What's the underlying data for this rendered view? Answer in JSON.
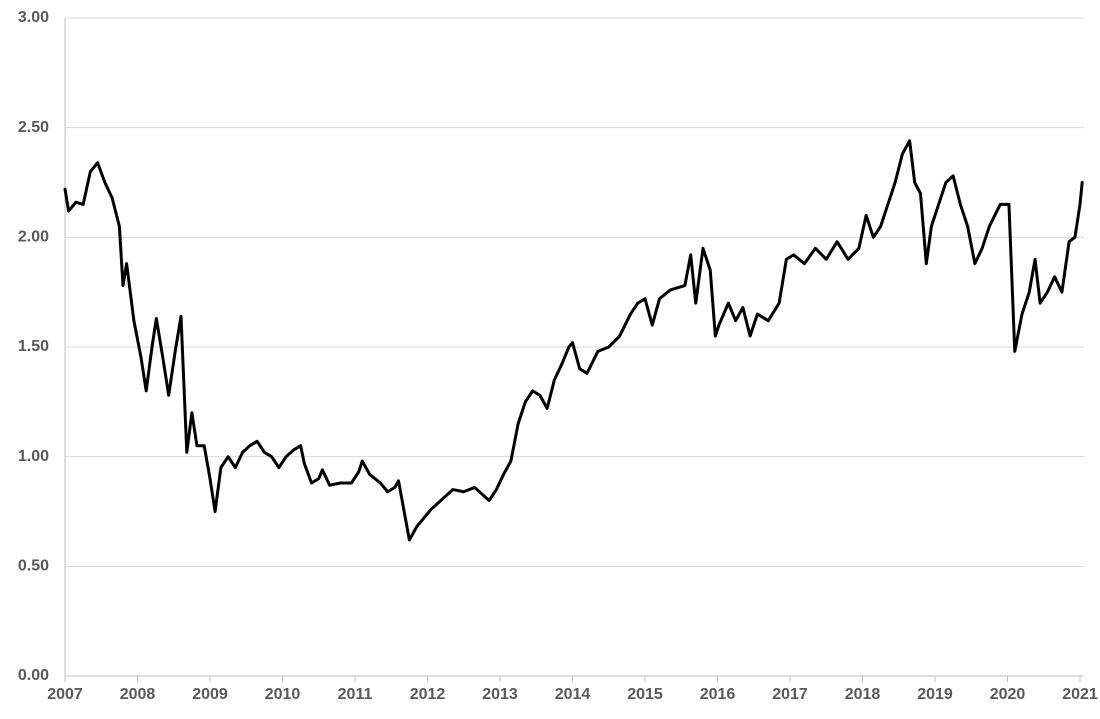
{
  "chart_data": {
    "type": "line",
    "color": "#000000",
    "grid": true,
    "xlim": [
      2007,
      2021
    ],
    "xticks": [
      2007,
      2008,
      2009,
      2010,
      2011,
      2012,
      2013,
      2014,
      2015,
      2016,
      2017,
      2018,
      2019,
      2020,
      2021
    ],
    "ylim": [
      0,
      3
    ],
    "yticks": [
      {
        "value": 0,
        "label": "0.00"
      },
      {
        "value": 0.5,
        "label": "0.50"
      },
      {
        "value": 1,
        "label": "1.00"
      },
      {
        "value": 1.5,
        "label": "1.50"
      },
      {
        "value": 2,
        "label": "2.00"
      },
      {
        "value": 2.5,
        "label": "2.50"
      },
      {
        "value": 3,
        "label": "3.00"
      }
    ],
    "x": [
      2007.0,
      2007.05,
      2007.15,
      2007.25,
      2007.35,
      2007.45,
      2007.55,
      2007.65,
      2007.75,
      2007.8,
      2007.85,
      2007.95,
      2008.05,
      2008.12,
      2008.2,
      2008.26,
      2008.35,
      2008.43,
      2008.52,
      2008.6,
      2008.68,
      2008.75,
      2008.82,
      2008.92,
      2009.0,
      2009.07,
      2009.15,
      2009.25,
      2009.35,
      2009.45,
      2009.55,
      2009.65,
      2009.75,
      2009.85,
      2009.95,
      2010.05,
      2010.15,
      2010.25,
      2010.3,
      2010.4,
      2010.5,
      2010.55,
      2010.65,
      2010.8,
      2010.95,
      2011.05,
      2011.1,
      2011.2,
      2011.35,
      2011.45,
      2011.55,
      2011.6,
      2011.65,
      2011.75,
      2011.85,
      2011.95,
      2012.05,
      2012.15,
      2012.25,
      2012.35,
      2012.5,
      2012.65,
      2012.75,
      2012.85,
      2012.95,
      2013.05,
      2013.15,
      2013.25,
      2013.35,
      2013.45,
      2013.55,
      2013.65,
      2013.75,
      2013.85,
      2013.95,
      2014.0,
      2014.1,
      2014.2,
      2014.35,
      2014.5,
      2014.65,
      2014.8,
      2014.9,
      2015.0,
      2015.1,
      2015.2,
      2015.35,
      2015.55,
      2015.63,
      2015.7,
      2015.8,
      2015.9,
      2015.97,
      2016.02,
      2016.15,
      2016.25,
      2016.35,
      2016.45,
      2016.55,
      2016.7,
      2016.85,
      2016.95,
      2017.05,
      2017.2,
      2017.35,
      2017.5,
      2017.65,
      2017.8,
      2017.95,
      2018.05,
      2018.15,
      2018.25,
      2018.35,
      2018.45,
      2018.55,
      2018.65,
      2018.72,
      2018.8,
      2018.88,
      2018.95,
      2019.05,
      2019.15,
      2019.25,
      2019.35,
      2019.45,
      2019.55,
      2019.65,
      2019.75,
      2019.9,
      2020.02,
      2020.1,
      2020.2,
      2020.3,
      2020.38,
      2020.45,
      2020.55,
      2020.65,
      2020.75,
      2020.85,
      2020.93,
      2021.0,
      2021.03
    ],
    "values": [
      2.22,
      2.12,
      2.16,
      2.15,
      2.3,
      2.34,
      2.25,
      2.18,
      2.05,
      1.78,
      1.88,
      1.62,
      1.45,
      1.3,
      1.5,
      1.63,
      1.45,
      1.28,
      1.48,
      1.64,
      1.02,
      1.2,
      1.05,
      1.05,
      0.9,
      0.75,
      0.95,
      1.0,
      0.95,
      1.02,
      1.05,
      1.07,
      1.02,
      1.0,
      0.95,
      1.0,
      1.03,
      1.05,
      0.97,
      0.88,
      0.9,
      0.94,
      0.87,
      0.88,
      0.88,
      0.93,
      0.98,
      0.92,
      0.88,
      0.84,
      0.86,
      0.89,
      0.8,
      0.62,
      0.68,
      0.72,
      0.76,
      0.79,
      0.82,
      0.85,
      0.84,
      0.86,
      0.83,
      0.8,
      0.85,
      0.92,
      0.98,
      1.15,
      1.25,
      1.3,
      1.28,
      1.22,
      1.35,
      1.42,
      1.5,
      1.52,
      1.4,
      1.38,
      1.48,
      1.5,
      1.55,
      1.65,
      1.7,
      1.72,
      1.6,
      1.72,
      1.76,
      1.78,
      1.92,
      1.7,
      1.95,
      1.85,
      1.55,
      1.6,
      1.7,
      1.62,
      1.68,
      1.55,
      1.65,
      1.62,
      1.7,
      1.9,
      1.92,
      1.88,
      1.95,
      1.9,
      1.98,
      1.9,
      1.95,
      2.1,
      2.0,
      2.05,
      2.15,
      2.25,
      2.38,
      2.44,
      2.25,
      2.2,
      1.88,
      2.05,
      2.15,
      2.25,
      2.28,
      2.15,
      2.05,
      1.88,
      1.95,
      2.05,
      2.15,
      2.15,
      1.48,
      1.65,
      1.75,
      1.9,
      1.7,
      1.75,
      1.82,
      1.75,
      1.98,
      2.0,
      2.15,
      2.25
    ]
  }
}
